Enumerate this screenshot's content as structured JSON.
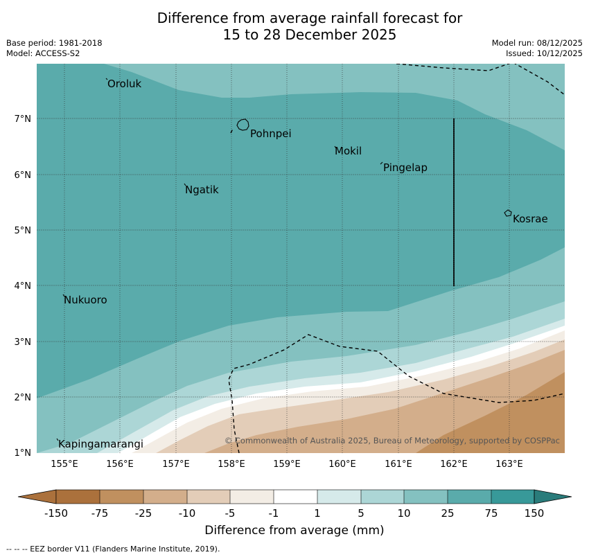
{
  "title": {
    "line1": "Difference from average rainfall forecast for",
    "line2": "15 to 28 December 2025"
  },
  "meta": {
    "base_period": "Base period: 1981-2018",
    "model": "Model: ACCESS-S2",
    "model_run": "Model run: 08/12/2025",
    "issued": "Issued: 10/12/2025"
  },
  "map": {
    "lon_labels": [
      "155°E",
      "156°E",
      "157°E",
      "158°E",
      "159°E",
      "160°E",
      "161°E",
      "162°E",
      "163°E"
    ],
    "lat_labels": [
      "7°N",
      "6°N",
      "5°N",
      "4°N",
      "3°N",
      "2°N",
      "1°N"
    ],
    "places": [
      "Oroluk",
      "Pohnpei",
      "Mokil",
      "Pingelap",
      "Ngatik",
      "Kosrae",
      "Nukuoro",
      "Kapingamarangi"
    ],
    "copyright": "© Commonwealth of Australia 2025, Bureau of Meteorology, supported by COSPPac"
  },
  "colorbar": {
    "ticks": [
      "-150",
      "-75",
      "-25",
      "-10",
      "-5",
      "-1",
      "1",
      "5",
      "10",
      "25",
      "75",
      "150"
    ],
    "colors": [
      "#ab713c",
      "#c0905f",
      "#d3ae8b",
      "#e3cdb8",
      "#f3ede5",
      "#ffffff",
      "#d6eaea",
      "#acd6d6",
      "#84c1c0",
      "#5aabab",
      "#389999",
      "#2a7c7b"
    ],
    "title": "Difference from average (mm)"
  },
  "footnote": "--  --  -- EEZ border V11 (Flanders Marine Institute, 2019)."
}
